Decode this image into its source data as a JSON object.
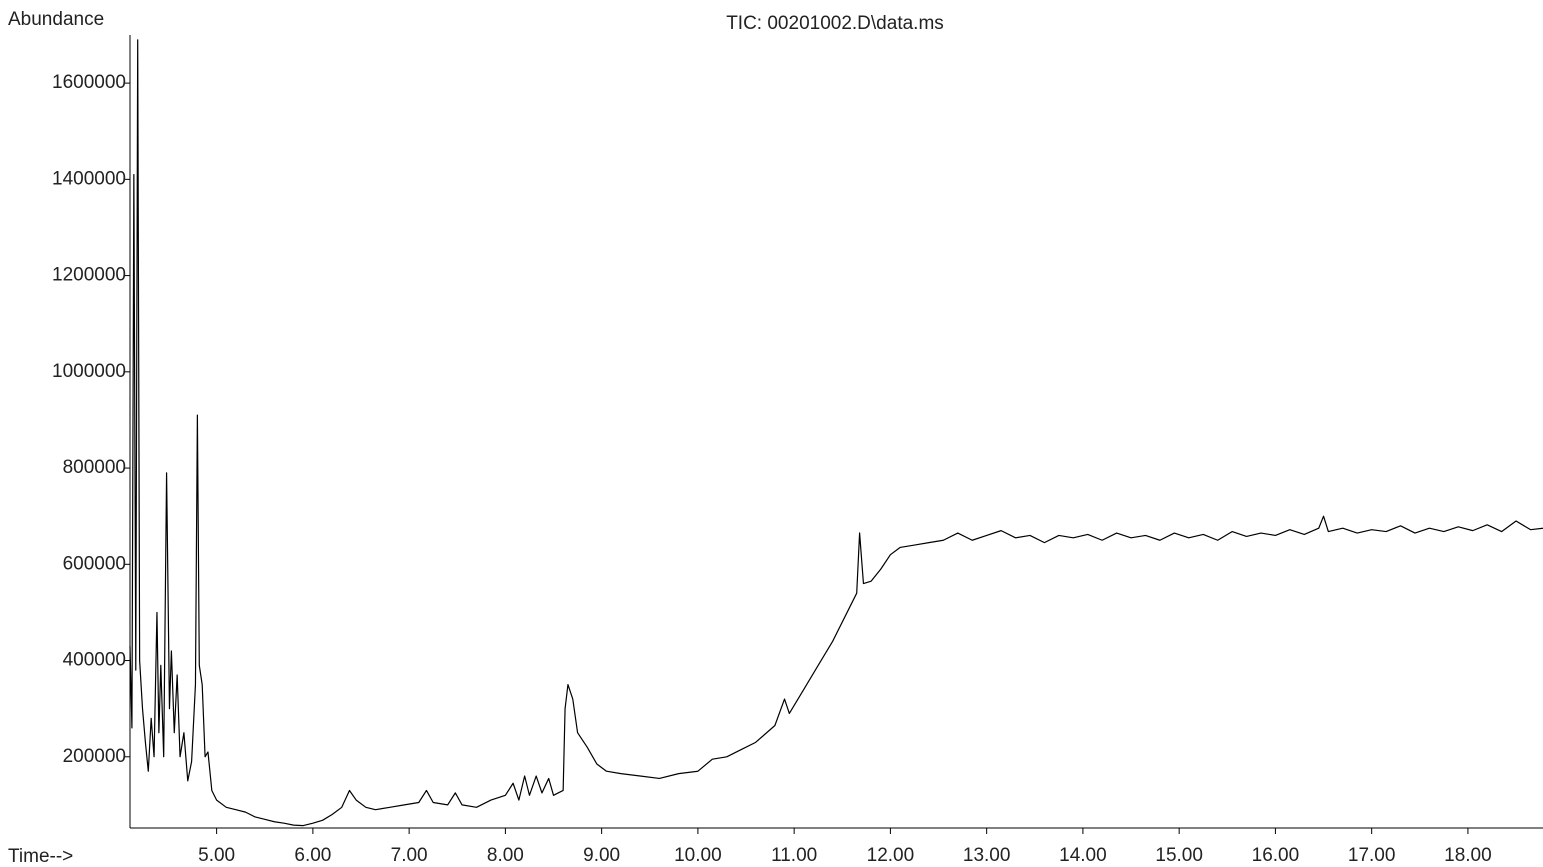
{
  "chart_data": {
    "type": "line",
    "title": "TIC: 00201002.D\\data.ms",
    "ylabel": "Abundance",
    "xlabel": "Time-->",
    "color": "#000000",
    "xlim": [
      4.1,
      18.78
    ],
    "ylim": [
      52000,
      1700000
    ],
    "xticks": [
      {
        "value": 5,
        "label": "5.00"
      },
      {
        "value": 6,
        "label": "6.00"
      },
      {
        "value": 7,
        "label": "7.00"
      },
      {
        "value": 8,
        "label": "8.00"
      },
      {
        "value": 9,
        "label": "9.00"
      },
      {
        "value": 10,
        "label": "10.00"
      },
      {
        "value": 11,
        "label": "11.00"
      },
      {
        "value": 12,
        "label": "12.00"
      },
      {
        "value": 13,
        "label": "13.00"
      },
      {
        "value": 14,
        "label": "14.00"
      },
      {
        "value": 15,
        "label": "15.00"
      },
      {
        "value": 16,
        "label": "16.00"
      },
      {
        "value": 17,
        "label": "17.00"
      },
      {
        "value": 18,
        "label": "18.00"
      }
    ],
    "yticks": [
      200000,
      400000,
      600000,
      800000,
      1000000,
      1200000,
      1400000,
      1600000
    ],
    "x": [
      4.1,
      4.12,
      4.14,
      4.16,
      4.18,
      4.2,
      4.23,
      4.26,
      4.29,
      4.32,
      4.35,
      4.38,
      4.4,
      4.42,
      4.45,
      4.48,
      4.51,
      4.53,
      4.56,
      4.59,
      4.62,
      4.66,
      4.7,
      4.74,
      4.78,
      4.8,
      4.82,
      4.85,
      4.88,
      4.91,
      4.95,
      5.0,
      5.1,
      5.2,
      5.3,
      5.4,
      5.5,
      5.6,
      5.7,
      5.8,
      5.9,
      6.0,
      6.1,
      6.2,
      6.3,
      6.38,
      6.45,
      6.55,
      6.65,
      6.8,
      6.95,
      7.1,
      7.18,
      7.25,
      7.4,
      7.48,
      7.55,
      7.7,
      7.85,
      8.0,
      8.08,
      8.14,
      8.2,
      8.25,
      8.32,
      8.38,
      8.45,
      8.5,
      8.6,
      8.62,
      8.65,
      8.7,
      8.75,
      8.85,
      8.95,
      9.05,
      9.2,
      9.4,
      9.6,
      9.8,
      10.0,
      10.15,
      10.3,
      10.45,
      10.6,
      10.8,
      10.9,
      10.95,
      11.1,
      11.25,
      11.4,
      11.55,
      11.65,
      11.68,
      11.72,
      11.8,
      11.9,
      12.0,
      12.1,
      12.25,
      12.4,
      12.55,
      12.7,
      12.85,
      13.0,
      13.15,
      13.3,
      13.45,
      13.6,
      13.75,
      13.9,
      14.05,
      14.2,
      14.35,
      14.5,
      14.65,
      14.8,
      14.95,
      15.1,
      15.25,
      15.4,
      15.55,
      15.7,
      15.85,
      16.0,
      16.15,
      16.3,
      16.45,
      16.5,
      16.55,
      16.7,
      16.85,
      17.0,
      17.15,
      17.3,
      17.45,
      17.6,
      17.75,
      17.9,
      18.05,
      18.2,
      18.35,
      18.5,
      18.65,
      18.78
    ],
    "values": [
      430000,
      260000,
      1410000,
      380000,
      1690000,
      400000,
      300000,
      230000,
      170000,
      280000,
      200000,
      500000,
      250000,
      390000,
      200000,
      790000,
      300000,
      420000,
      250000,
      370000,
      200000,
      250000,
      150000,
      190000,
      350000,
      910000,
      390000,
      350000,
      200000,
      210000,
      130000,
      110000,
      95000,
      90000,
      85000,
      75000,
      70000,
      65000,
      62000,
      58000,
      57000,
      62000,
      68000,
      80000,
      95000,
      130000,
      110000,
      95000,
      90000,
      95000,
      100000,
      105000,
      130000,
      105000,
      100000,
      125000,
      100000,
      95000,
      110000,
      120000,
      145000,
      110000,
      160000,
      120000,
      160000,
      125000,
      155000,
      120000,
      130000,
      300000,
      350000,
      320000,
      250000,
      220000,
      185000,
      170000,
      165000,
      160000,
      155000,
      165000,
      170000,
      195000,
      200000,
      215000,
      230000,
      265000,
      320000,
      290000,
      340000,
      390000,
      440000,
      500000,
      540000,
      665000,
      560000,
      565000,
      590000,
      620000,
      635000,
      640000,
      645000,
      650000,
      665000,
      650000,
      660000,
      670000,
      655000,
      660000,
      645000,
      660000,
      655000,
      662000,
      650000,
      665000,
      655000,
      660000,
      650000,
      665000,
      655000,
      662000,
      650000,
      668000,
      658000,
      665000,
      660000,
      672000,
      662000,
      675000,
      700000,
      668000,
      675000,
      665000,
      672000,
      668000,
      680000,
      665000,
      675000,
      668000,
      678000,
      670000,
      682000,
      668000,
      690000,
      672000,
      675000
    ]
  }
}
